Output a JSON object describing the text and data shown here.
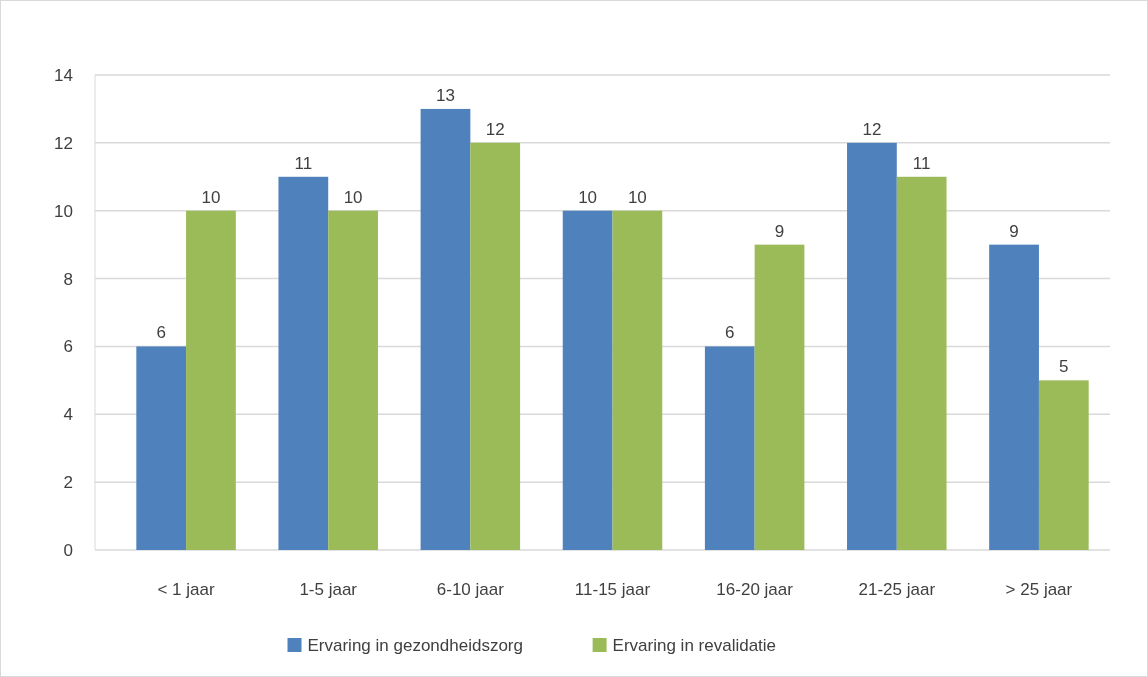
{
  "chart_data": {
    "type": "bar",
    "categories": [
      "< 1 jaar",
      "1-5 jaar",
      "6-10 jaar",
      "11-15 jaar",
      "16-20 jaar",
      "21-25 jaar",
      "> 25 jaar"
    ],
    "series": [
      {
        "name": "Ervaring in gezondheidszorg",
        "color": "#4f81bd",
        "values": [
          6,
          11,
          13,
          10,
          6,
          12,
          9
        ]
      },
      {
        "name": "Ervaring in revalidatie",
        "color": "#9bbb59",
        "values": [
          10,
          10,
          12,
          10,
          9,
          11,
          5
        ]
      }
    ],
    "ylim": [
      0,
      14
    ],
    "yticks": [
      0,
      2,
      4,
      6,
      8,
      10,
      12,
      14
    ],
    "grid": "y",
    "legend": "bottom",
    "data_labels": true
  }
}
